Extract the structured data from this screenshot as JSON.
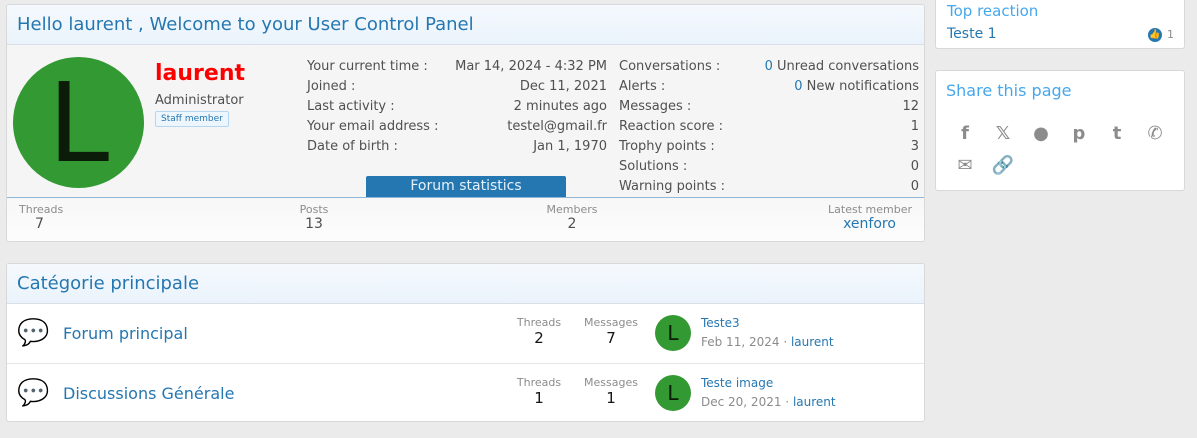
{
  "welcome": {
    "title": "Hello laurent , Welcome to your User Control Panel",
    "avatar_letter": "L",
    "username": "laurent",
    "role": "Administrator",
    "badge": "Staff member",
    "info_left": [
      {
        "label": "Your current time :",
        "value": "Mar 14, 2024 - 4:32 PM"
      },
      {
        "label": "Joined :",
        "value": "Dec 11, 2021"
      },
      {
        "label": "Last activity :",
        "value": "2 minutes ago"
      },
      {
        "label": "Your email address :",
        "value": "testel@gmail.fr"
      },
      {
        "label": "Date of birth :",
        "value": "Jan 1, 1970"
      }
    ],
    "info_right": [
      {
        "label": "Conversations :",
        "count": "0",
        "value": "Unread conversations"
      },
      {
        "label": "Alerts :",
        "count": "0",
        "value": "New notifications"
      },
      {
        "label": "Messages :",
        "value": "12"
      },
      {
        "label": "Reaction score :",
        "value": "1"
      },
      {
        "label": "Trophy points :",
        "value": "3"
      },
      {
        "label": "Solutions :",
        "value": "0"
      },
      {
        "label": "Warning points :",
        "value": "0"
      }
    ],
    "stats_button": "Forum statistics",
    "stats": [
      {
        "label": "Threads",
        "value": "7"
      },
      {
        "label": "Posts",
        "value": "13"
      },
      {
        "label": "Members",
        "value": "2"
      },
      {
        "label": "Latest member",
        "value": "xenforo"
      }
    ]
  },
  "sidebar": {
    "top_reaction": {
      "title": "Top reaction",
      "item": "Teste 1",
      "count": "1"
    },
    "share": {
      "title": "Share this page",
      "icons": [
        "facebook-icon",
        "x-icon",
        "reddit-icon",
        "pinterest-icon",
        "tumblr-icon",
        "whatsapp-icon",
        "email-icon",
        "link-icon"
      ]
    }
  },
  "category": {
    "title": "Catégorie principale",
    "forums": [
      {
        "name": "Forum principal",
        "threads_label": "Threads",
        "threads": "2",
        "messages_label": "Messages",
        "messages": "7",
        "avatar": "L",
        "last_title": "Teste3",
        "last_date": "Feb 11, 2024",
        "last_user": "laurent"
      },
      {
        "name": "Discussions Générale",
        "threads_label": "Threads",
        "threads": "1",
        "messages_label": "Messages",
        "messages": "1",
        "avatar": "L",
        "last_title": "Teste image",
        "last_date": "Dec 20, 2021",
        "last_user": "laurent"
      }
    ]
  },
  "colors": {
    "accent": "#2577b1",
    "avatar": "#339933",
    "username": "#ff0000",
    "button": "#2577b1"
  }
}
